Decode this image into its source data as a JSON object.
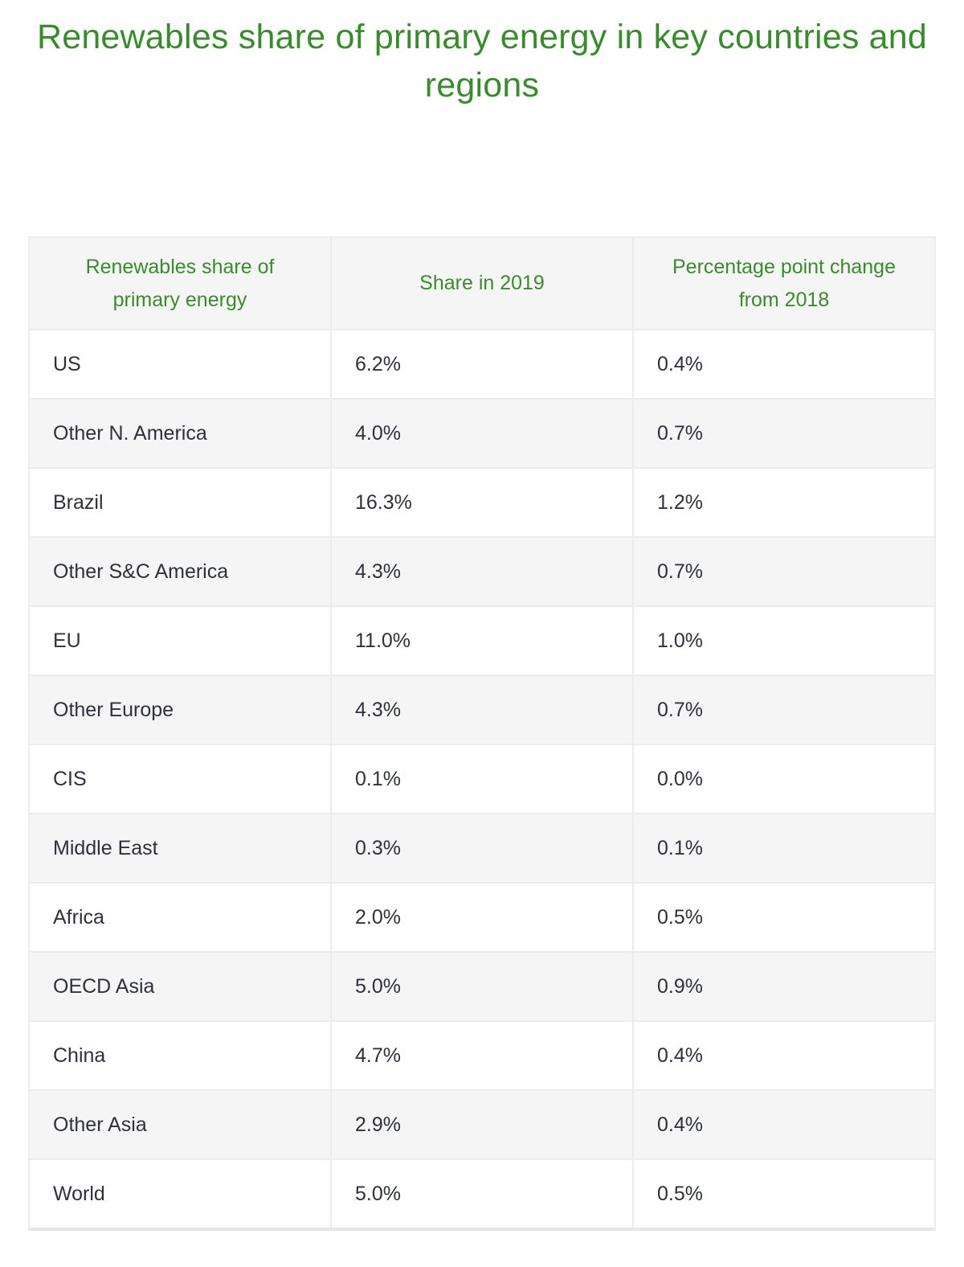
{
  "title": {
    "text": "Renewables share of primary energy in key countries and regions"
  },
  "colors": {
    "accent_green": "#3a8a2e",
    "header_bg": "#f5f5f5",
    "row_alt_bg": "#f5f5f5",
    "border": "#ececec",
    "body_text": "#2e313c"
  },
  "table": {
    "columns": [
      {
        "key": "region",
        "label": "Renewables share of primary energy"
      },
      {
        "key": "share_2019",
        "label": "Share in 2019"
      },
      {
        "key": "change_from_2018",
        "label": "Percentage point change from 2018"
      }
    ],
    "rows": [
      {
        "region": "US",
        "share_2019": "6.2%",
        "change_from_2018": "0.4%"
      },
      {
        "region": "Other N. America",
        "share_2019": "4.0%",
        "change_from_2018": "0.7%"
      },
      {
        "region": "Brazil",
        "share_2019": "16.3%",
        "change_from_2018": "1.2%"
      },
      {
        "region": "Other S&C America",
        "share_2019": "4.3%",
        "change_from_2018": "0.7%"
      },
      {
        "region": "EU",
        "share_2019": "11.0%",
        "change_from_2018": "1.0%"
      },
      {
        "region": "Other Europe",
        "share_2019": "4.3%",
        "change_from_2018": "0.7%"
      },
      {
        "region": "CIS",
        "share_2019": "0.1%",
        "change_from_2018": "0.0%"
      },
      {
        "region": "Middle East",
        "share_2019": "0.3%",
        "change_from_2018": "0.1%"
      },
      {
        "region": "Africa",
        "share_2019": "2.0%",
        "change_from_2018": "0.5%"
      },
      {
        "region": "OECD Asia",
        "share_2019": "5.0%",
        "change_from_2018": "0.9%"
      },
      {
        "region": "China",
        "share_2019": "4.7%",
        "change_from_2018": "0.4%"
      },
      {
        "region": "Other Asia",
        "share_2019": "2.9%",
        "change_from_2018": "0.4%"
      },
      {
        "region": "World",
        "share_2019": "5.0%",
        "change_from_2018": "0.5%"
      }
    ]
  },
  "chart_data": {
    "type": "table",
    "title": "Renewables share of primary energy in key countries and regions",
    "categories": [
      "US",
      "Other N. America",
      "Brazil",
      "Other S&C America",
      "EU",
      "Other Europe",
      "CIS",
      "Middle East",
      "Africa",
      "OECD Asia",
      "China",
      "Other Asia",
      "World"
    ],
    "series": [
      {
        "name": "Share in 2019",
        "unit": "%",
        "values": [
          6.2,
          4.0,
          16.3,
          4.3,
          11.0,
          4.3,
          0.1,
          0.3,
          2.0,
          5.0,
          4.7,
          2.9,
          5.0
        ]
      },
      {
        "name": "Percentage point change from 2018",
        "unit": "percentage points",
        "values": [
          0.4,
          0.7,
          1.2,
          0.7,
          1.0,
          0.7,
          0.0,
          0.1,
          0.5,
          0.9,
          0.4,
          0.4,
          0.5
        ]
      }
    ],
    "layout": {
      "header_row": true,
      "alternating_rows": true,
      "value_alignment": "left"
    }
  }
}
